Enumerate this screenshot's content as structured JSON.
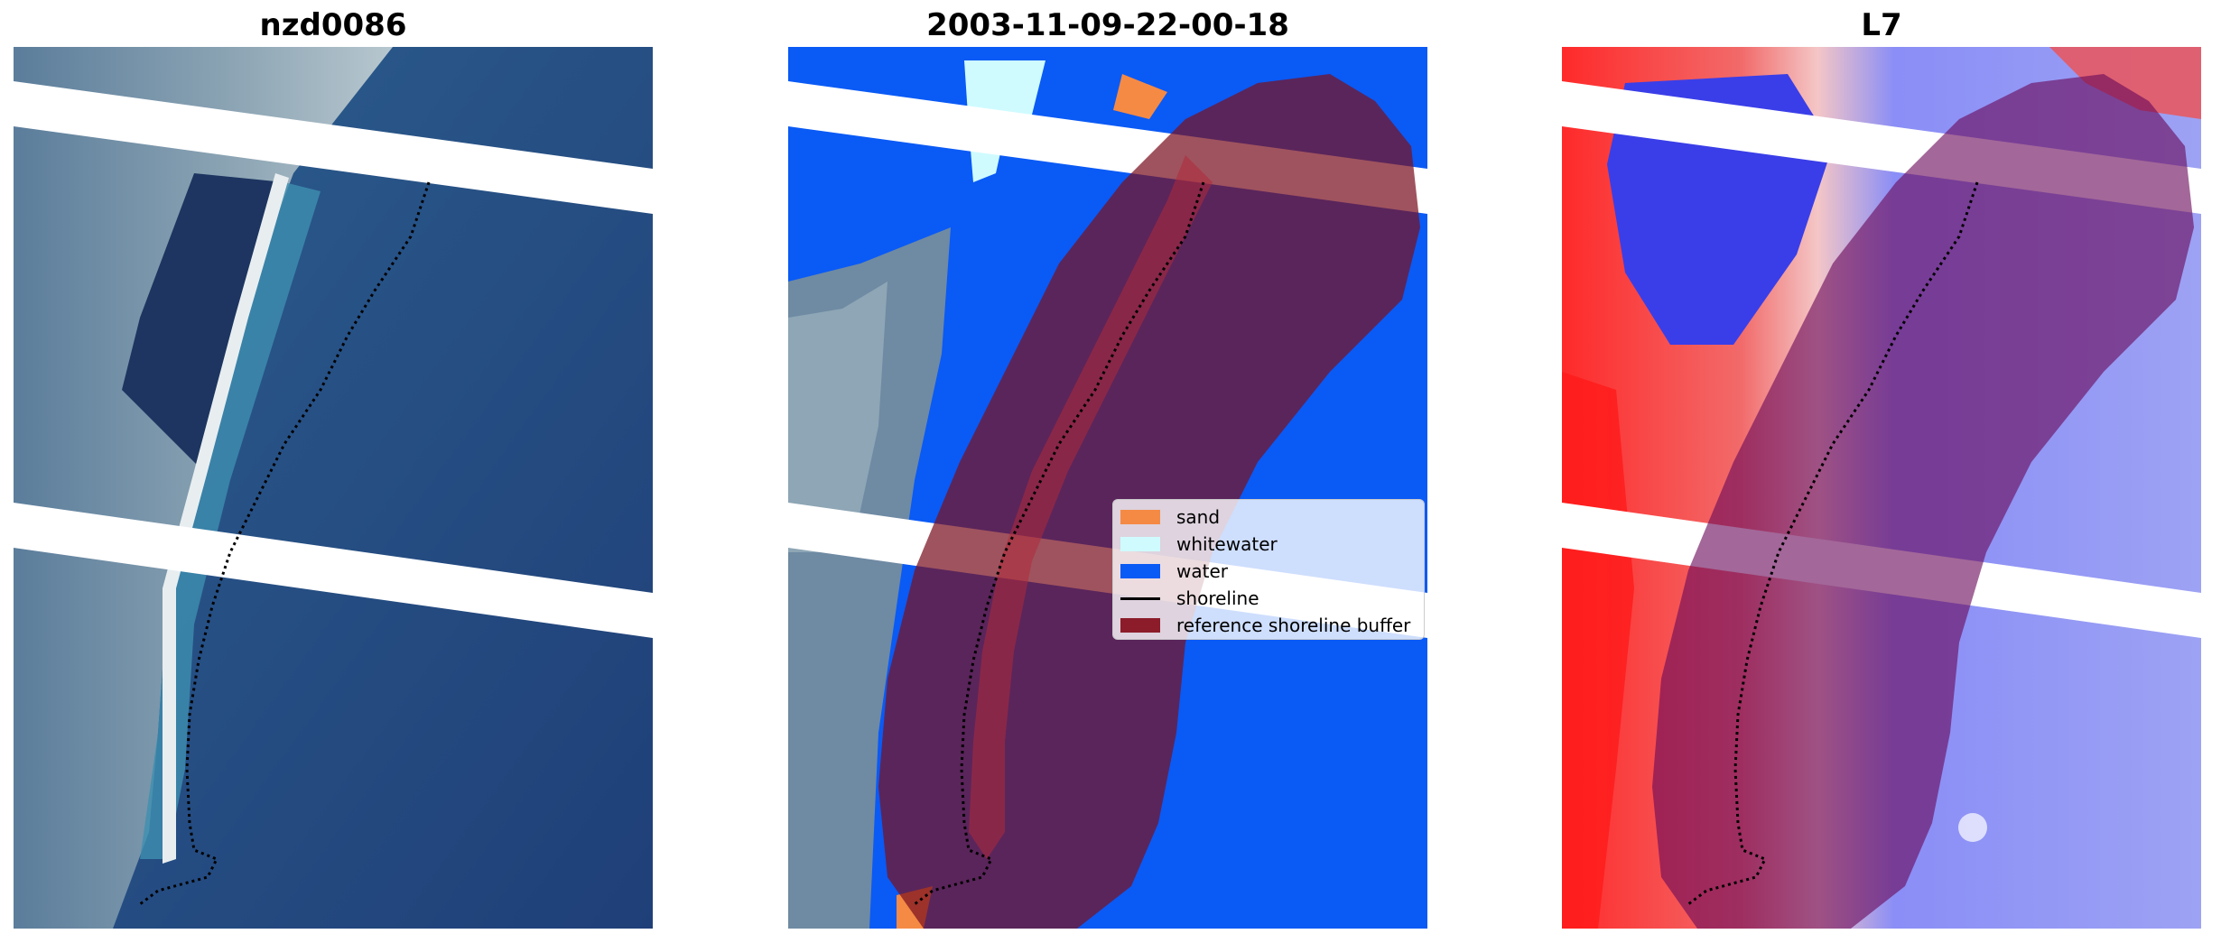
{
  "panels": {
    "rgb": {
      "title": "nzd0086"
    },
    "classified": {
      "title": "2003-11-09-22-00-18"
    },
    "index": {
      "title": "L7"
    }
  },
  "legend": {
    "items": [
      {
        "label": "sand",
        "color": "#f58a45",
        "kind": "patch"
      },
      {
        "label": "whitewater",
        "color": "#cffbff",
        "kind": "patch"
      },
      {
        "label": "water",
        "color": "#0a5af5",
        "kind": "patch"
      },
      {
        "label": "shoreline",
        "color": "#000000",
        "kind": "line"
      },
      {
        "label": "reference shoreline buffer",
        "color": "#8c1c2a",
        "kind": "patch"
      }
    ]
  },
  "colors": {
    "water_class": "#0a5af5",
    "sand_class": "#f58a45",
    "whitewater_class": "#cffbff",
    "buffer": "#7a1020",
    "index_positive": "#e8202a",
    "index_negative": "#5a5ff0"
  }
}
